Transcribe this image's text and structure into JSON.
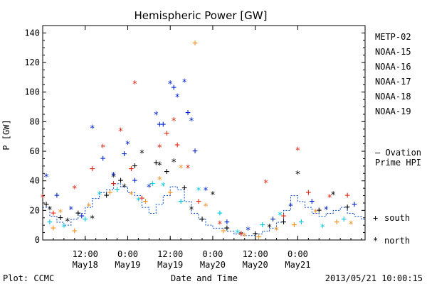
{
  "chart_data": {
    "type": "scatter",
    "title": "Hemispheric Power [GW]",
    "ylabel": "P [GW]",
    "xlabel": "Date and Time",
    "ylim": [
      0,
      145
    ],
    "xlim_hours": [
      0,
      91
    ],
    "yticks": [
      0,
      20,
      40,
      60,
      80,
      100,
      120,
      140
    ],
    "xticks": [
      {
        "hours": 12,
        "line1": "12:00",
        "line2": "May18"
      },
      {
        "hours": 24,
        "line1": "0:00",
        "line2": "May19"
      },
      {
        "hours": 36,
        "line1": "12:00",
        "line2": "May19"
      },
      {
        "hours": 48,
        "line1": "0:00",
        "line2": "May20"
      },
      {
        "hours": 60,
        "line1": "12:00",
        "line2": "May20"
      },
      {
        "hours": 72,
        "line1": "0:00",
        "line2": "May21"
      }
    ],
    "series": [
      {
        "name": "METP-02",
        "color": "#000000"
      },
      {
        "name": "NOAA-15",
        "color": "#0022cc"
      },
      {
        "name": "NOAA-16",
        "color": "#00c8e0"
      },
      {
        "name": "NOAA-17",
        "color": "#00e070"
      },
      {
        "name": "NOAA-18",
        "color": "#f09020"
      },
      {
        "name": "NOAA-19",
        "color": "#e02810"
      }
    ],
    "ovation_label": [
      "— Ovation",
      "Prime HPI"
    ],
    "ovation_color": "#0044cc",
    "ovation_hpi": [
      [
        0,
        22
      ],
      [
        2,
        16
      ],
      [
        4,
        12
      ],
      [
        6,
        10
      ],
      [
        8,
        14
      ],
      [
        10,
        18
      ],
      [
        12,
        22
      ],
      [
        14,
        28
      ],
      [
        16,
        32
      ],
      [
        18,
        34
      ],
      [
        20,
        38
      ],
      [
        22,
        36
      ],
      [
        24,
        32
      ],
      [
        26,
        30
      ],
      [
        28,
        22
      ],
      [
        30,
        18
      ],
      [
        32,
        24
      ],
      [
        34,
        30
      ],
      [
        36,
        36
      ],
      [
        38,
        34
      ],
      [
        40,
        26
      ],
      [
        42,
        18
      ],
      [
        44,
        14
      ],
      [
        46,
        10
      ],
      [
        48,
        8
      ],
      [
        50,
        8
      ],
      [
        52,
        6
      ],
      [
        54,
        4
      ],
      [
        56,
        3
      ],
      [
        58,
        3
      ],
      [
        60,
        4
      ],
      [
        62,
        6
      ],
      [
        64,
        8
      ],
      [
        66,
        12
      ],
      [
        68,
        20
      ],
      [
        70,
        30
      ],
      [
        72,
        26
      ],
      [
        74,
        22
      ],
      [
        76,
        18
      ],
      [
        78,
        16
      ],
      [
        80,
        18
      ],
      [
        82,
        20
      ],
      [
        84,
        22
      ],
      [
        86,
        18
      ],
      [
        88,
        16
      ],
      [
        90,
        14
      ]
    ],
    "points": [
      [
        "METP-02",
        "+",
        1,
        24
      ],
      [
        "METP-02",
        "*",
        2,
        20
      ],
      [
        "METP-02",
        "+",
        5,
        15
      ],
      [
        "METP-02",
        "*",
        7,
        12
      ],
      [
        "METP-02",
        "+",
        10,
        18
      ],
      [
        "METP-02",
        "*",
        14,
        14
      ],
      [
        "METP-02",
        "+",
        18,
        30
      ],
      [
        "METP-02",
        "*",
        20,
        42
      ],
      [
        "METP-02",
        "+",
        22,
        40
      ],
      [
        "METP-02",
        "*",
        23,
        35
      ],
      [
        "METP-02",
        "+",
        26,
        50
      ],
      [
        "METP-02",
        "*",
        28,
        58
      ],
      [
        "METP-02",
        "+",
        32,
        52
      ],
      [
        "METP-02",
        "*",
        33,
        50
      ],
      [
        "METP-02",
        "+",
        35,
        46
      ],
      [
        "METP-02",
        "*",
        37,
        52
      ],
      [
        "METP-02",
        "+",
        40,
        35
      ],
      [
        "METP-02",
        "*",
        42,
        20
      ],
      [
        "METP-02",
        "+",
        45,
        14
      ],
      [
        "METP-02",
        "*",
        48,
        30
      ],
      [
        "METP-02",
        "+",
        52,
        8
      ],
      [
        "METP-02",
        "*",
        56,
        3
      ],
      [
        "METP-02",
        "+",
        60,
        4
      ],
      [
        "METP-02",
        "*",
        64,
        8
      ],
      [
        "METP-02",
        "+",
        68,
        12
      ],
      [
        "METP-02",
        "*",
        72,
        44
      ],
      [
        "METP-02",
        "+",
        78,
        20
      ],
      [
        "METP-02",
        "*",
        82,
        30
      ],
      [
        "METP-02",
        "+",
        86,
        22
      ],
      [
        "NOAA-15",
        "*",
        1,
        42
      ],
      [
        "NOAA-15",
        "+",
        4,
        30
      ],
      [
        "NOAA-15",
        "*",
        8,
        20
      ],
      [
        "NOAA-15",
        "+",
        11,
        16
      ],
      [
        "NOAA-15",
        "*",
        14,
        75
      ],
      [
        "NOAA-15",
        "+",
        17,
        55
      ],
      [
        "NOAA-15",
        "*",
        20,
        43
      ],
      [
        "NOAA-15",
        "+",
        23,
        58
      ],
      [
        "NOAA-15",
        "*",
        24,
        64
      ],
      [
        "NOAA-15",
        "+",
        26,
        40
      ],
      [
        "NOAA-15",
        "*",
        30,
        35
      ],
      [
        "NOAA-15",
        "*",
        32,
        84
      ],
      [
        "NOAA-15",
        "+",
        33,
        78
      ],
      [
        "NOAA-15",
        "+",
        34,
        78
      ],
      [
        "NOAA-15",
        "*",
        36,
        105
      ],
      [
        "NOAA-15",
        "+",
        37,
        103
      ],
      [
        "NOAA-15",
        "*",
        38,
        96
      ],
      [
        "NOAA-15",
        "*",
        40,
        106
      ],
      [
        "NOAA-15",
        "+",
        41,
        86
      ],
      [
        "NOAA-15",
        "*",
        42,
        80
      ],
      [
        "NOAA-15",
        "+",
        43,
        60
      ],
      [
        "NOAA-15",
        "*",
        46,
        33
      ],
      [
        "NOAA-15",
        "+",
        52,
        12
      ],
      [
        "NOAA-15",
        "*",
        58,
        6
      ],
      [
        "NOAA-15",
        "+",
        65,
        14
      ],
      [
        "NOAA-15",
        "*",
        70,
        22
      ],
      [
        "NOAA-15",
        "+",
        76,
        26
      ],
      [
        "NOAA-15",
        "*",
        80,
        20
      ],
      [
        "NOAA-15",
        "+",
        88,
        24
      ],
      [
        "NOAA-16",
        "+",
        2,
        12
      ],
      [
        "NOAA-16",
        "*",
        6,
        8
      ],
      [
        "NOAA-16",
        "+",
        12,
        14
      ],
      [
        "NOAA-16",
        "*",
        16,
        30
      ],
      [
        "NOAA-16",
        "+",
        21,
        34
      ],
      [
        "NOAA-16",
        "*",
        27,
        26
      ],
      [
        "NOAA-16",
        "+",
        31,
        38
      ],
      [
        "NOAA-16",
        "*",
        34,
        36
      ],
      [
        "NOAA-16",
        "+",
        39,
        26
      ],
      [
        "NOAA-16",
        "*",
        44,
        33
      ],
      [
        "NOAA-16",
        "+",
        50,
        18
      ],
      [
        "NOAA-16",
        "*",
        55,
        4
      ],
      [
        "NOAA-16",
        "+",
        62,
        10
      ],
      [
        "NOAA-16",
        "*",
        67,
        16
      ],
      [
        "NOAA-16",
        "+",
        73,
        12
      ],
      [
        "NOAA-16",
        "*",
        79,
        8
      ],
      [
        "NOAA-16",
        "+",
        85,
        14
      ],
      [
        "NOAA-18",
        "+",
        3,
        8
      ],
      [
        "NOAA-18",
        "*",
        5,
        18
      ],
      [
        "NOAA-18",
        "+",
        9,
        6
      ],
      [
        "NOAA-18",
        "*",
        13,
        22
      ],
      [
        "NOAA-18",
        "+",
        19,
        32
      ],
      [
        "NOAA-18",
        "*",
        25,
        30
      ],
      [
        "NOAA-18",
        "+",
        29,
        26
      ],
      [
        "NOAA-18",
        "*",
        33,
        40
      ],
      [
        "NOAA-18",
        "+",
        36,
        32
      ],
      [
        "NOAA-18",
        "*",
        39,
        48
      ],
      [
        "NOAA-18",
        "+",
        43,
        133
      ],
      [
        "NOAA-18",
        "*",
        46,
        22
      ],
      [
        "NOAA-18",
        "+",
        51,
        6
      ],
      [
        "NOAA-18",
        "*",
        57,
        2
      ],
      [
        "NOAA-18",
        "+",
        61,
        2
      ],
      [
        "NOAA-18",
        "*",
        66,
        6
      ],
      [
        "NOAA-18",
        "+",
        71,
        10
      ],
      [
        "NOAA-18",
        "*",
        77,
        18
      ],
      [
        "NOAA-18",
        "+",
        83,
        12
      ],
      [
        "NOAA-18",
        "*",
        87,
        10
      ],
      [
        "NOAA-19",
        "*",
        0,
        28
      ],
      [
        "NOAA-19",
        "+",
        3,
        18
      ],
      [
        "NOAA-19",
        "*",
        9,
        34
      ],
      [
        "NOAA-19",
        "+",
        14,
        48
      ],
      [
        "NOAA-19",
        "*",
        17,
        62
      ],
      [
        "NOAA-19",
        "+",
        20,
        38
      ],
      [
        "NOAA-19",
        "*",
        22,
        73
      ],
      [
        "NOAA-19",
        "+",
        25,
        48
      ],
      [
        "NOAA-19",
        "*",
        26,
        105
      ],
      [
        "NOAA-19",
        "+",
        28,
        28
      ],
      [
        "NOAA-19",
        "*",
        33,
        62
      ],
      [
        "NOAA-19",
        "+",
        35,
        72
      ],
      [
        "NOAA-19",
        "*",
        37,
        80
      ],
      [
        "NOAA-19",
        "+",
        38,
        64
      ],
      [
        "NOAA-19",
        "*",
        41,
        48
      ],
      [
        "NOAA-19",
        "+",
        44,
        26
      ],
      [
        "NOAA-19",
        "*",
        50,
        10
      ],
      [
        "NOAA-19",
        "+",
        56,
        4
      ],
      [
        "NOAA-19",
        "*",
        63,
        38
      ],
      [
        "NOAA-19",
        "+",
        68,
        16
      ],
      [
        "NOAA-19",
        "*",
        72,
        60
      ],
      [
        "NOAA-19",
        "+",
        75,
        32
      ],
      [
        "NOAA-19",
        "*",
        81,
        28
      ],
      [
        "NOAA-19",
        "+",
        86,
        30
      ]
    ]
  },
  "legend_markers": {
    "south_symbol": "+",
    "south_label": "south",
    "north_symbol": "*",
    "north_label": "north"
  },
  "footer": {
    "plot_credit": "Plot: CCMC",
    "timestamp": "2013/05/21 10:00:15"
  }
}
